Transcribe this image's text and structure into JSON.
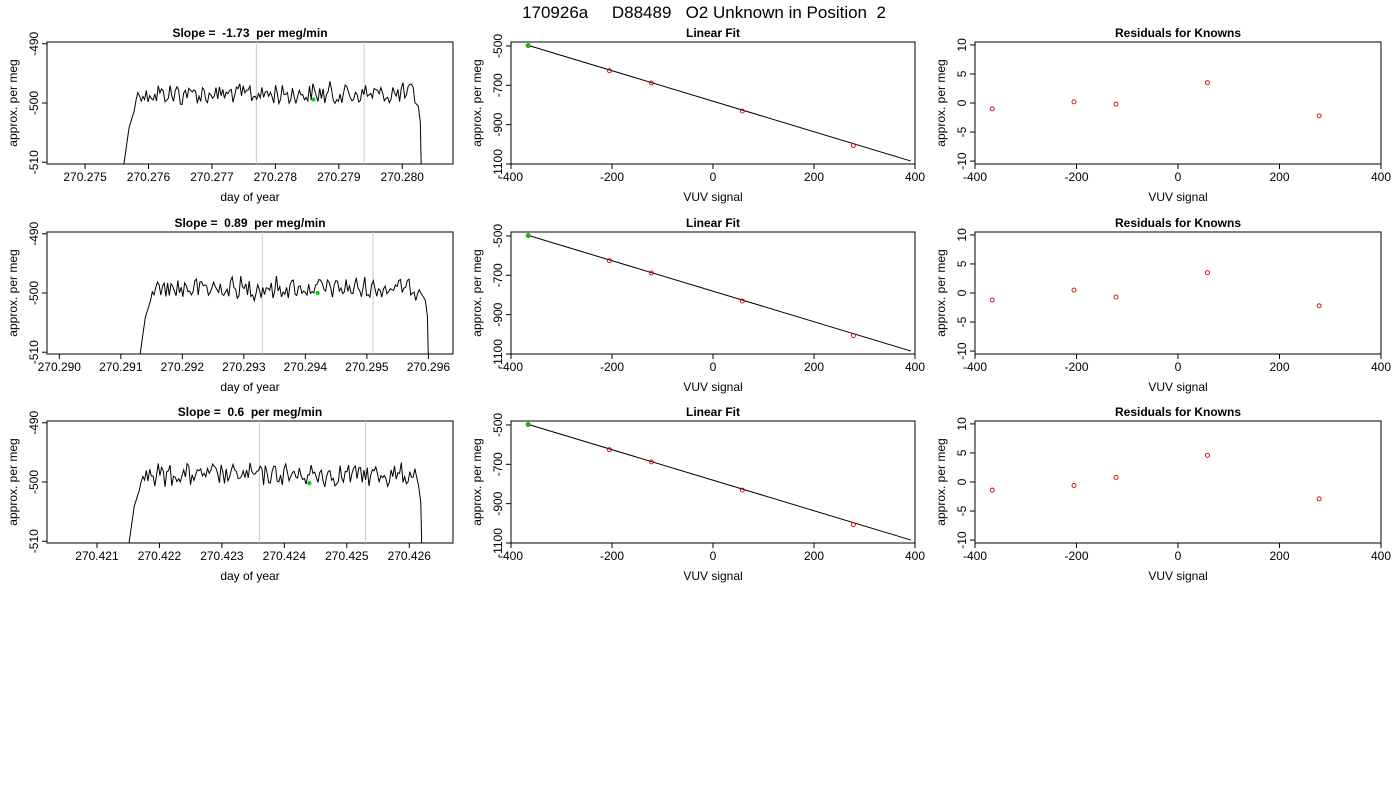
{
  "page_title": "170926a     D88489   O2 Unknown in Position  2",
  "colors": {
    "trace": "#000000",
    "marker_unknown": "#00cc00",
    "residual_points": "#cc0000",
    "fit_points": "#cc0000",
    "vlines": "#c8c8c8",
    "frame": "#000000"
  },
  "chart_data": [
    {
      "type": "line",
      "title": "Slope =  -1.73  per meg/min",
      "xlabel": "day of year",
      "ylabel": "approx. per meg",
      "xlim": [
        270.2744,
        270.2808
      ],
      "ylim": [
        -510.3,
        -489.7
      ],
      "xticks": [
        "270.275",
        "270.276",
        "270.277",
        "270.278",
        "270.279",
        "270.280"
      ],
      "yticks": [
        "-490",
        "-500",
        "-510"
      ],
      "grid": false,
      "trace_start": 270.2756,
      "trace_end": 270.2803,
      "trace_level": -498.5,
      "vlines": [
        270.2777,
        270.2794
      ],
      "marker": {
        "x": 270.2786,
        "y": -499.4
      }
    },
    {
      "type": "scatter",
      "title": "Linear Fit",
      "xlabel": "VUV signal",
      "ylabel": "approx. per meg",
      "xlim": [
        -400,
        400
      ],
      "ylim": [
        -1100,
        -480
      ],
      "xticks": [
        "-400",
        "-200",
        "0",
        "200",
        "400"
      ],
      "yticks": [
        "-500",
        "-700",
        "-900",
        "-1100"
      ],
      "points": [
        [
          -366,
          -498
        ],
        [
          -205,
          -626
        ],
        [
          -122,
          -688
        ],
        [
          58,
          -831
        ],
        [
          278,
          -1006
        ]
      ],
      "fit_line": [
        [
          -370,
          -494
        ],
        [
          392,
          -1085
        ]
      ],
      "marker": {
        "x": -366,
        "y": -498
      }
    },
    {
      "type": "scatter",
      "title": "Residuals for Knowns",
      "xlabel": "VUV signal",
      "ylabel": "approx. per meg",
      "xlim": [
        -400,
        400
      ],
      "ylim": [
        -10.5,
        10.5
      ],
      "xticks": [
        "-400",
        "-200",
        "0",
        "200",
        "400"
      ],
      "yticks": [
        "-10",
        "-5",
        "0",
        "5",
        "10"
      ],
      "points": [
        [
          -366,
          -1.0
        ],
        [
          -205,
          0.2
        ],
        [
          -122,
          -0.2
        ],
        [
          58,
          3.5
        ],
        [
          278,
          -2.2
        ]
      ]
    },
    {
      "type": "line",
      "title": "Slope =  0.89  per meg/min",
      "xlabel": "day of year",
      "ylabel": "approx. per meg",
      "xlim": [
        270.2898,
        270.2964
      ],
      "ylim": [
        -510.3,
        -489.7
      ],
      "xticks": [
        "270.290",
        "270.291",
        "270.292",
        "270.293",
        "270.294",
        "270.295",
        "270.296"
      ],
      "yticks": [
        "-490",
        "-500",
        "-510"
      ],
      "grid": false,
      "trace_start": 270.2913,
      "trace_end": 270.296,
      "trace_level": -499.2,
      "vlines": [
        270.2933,
        270.2951
      ],
      "marker": {
        "x": 270.2942,
        "y": -500.0
      }
    },
    {
      "type": "scatter",
      "title": "Linear Fit",
      "xlabel": "VUV signal",
      "ylabel": "approx. per meg",
      "xlim": [
        -400,
        400
      ],
      "ylim": [
        -1100,
        -480
      ],
      "xticks": [
        "-400",
        "-200",
        "0",
        "200",
        "400"
      ],
      "yticks": [
        "-500",
        "-700",
        "-900",
        "-1100"
      ],
      "points": [
        [
          -366,
          -498
        ],
        [
          -205,
          -626
        ],
        [
          -122,
          -688
        ],
        [
          58,
          -831
        ],
        [
          278,
          -1006
        ]
      ],
      "fit_line": [
        [
          -370,
          -494
        ],
        [
          392,
          -1085
        ]
      ],
      "marker": {
        "x": -366,
        "y": -498
      }
    },
    {
      "type": "scatter",
      "title": "Residuals for Knowns",
      "xlabel": "VUV signal",
      "ylabel": "approx. per meg",
      "xlim": [
        -400,
        400
      ],
      "ylim": [
        -10.5,
        10.5
      ],
      "xticks": [
        "-400",
        "-200",
        "0",
        "200",
        "400"
      ],
      "yticks": [
        "-10",
        "-5",
        "0",
        "5",
        "10"
      ],
      "points": [
        [
          -366,
          -1.2
        ],
        [
          -205,
          0.5
        ],
        [
          -122,
          -0.7
        ],
        [
          58,
          3.5
        ],
        [
          278,
          -2.2
        ]
      ]
    },
    {
      "type": "line",
      "title": "Slope =  0.6  per meg/min",
      "xlabel": "day of year",
      "ylabel": "approx. per meg",
      "xlim": [
        270.4202,
        270.4267
      ],
      "ylim": [
        -510.3,
        -489.7
      ],
      "xticks": [
        "270.421",
        "270.422",
        "270.423",
        "270.424",
        "270.425",
        "270.426"
      ],
      "yticks": [
        "-490",
        "-500",
        "-510"
      ],
      "grid": false,
      "trace_start": 270.4215,
      "trace_end": 270.4262,
      "trace_level": -498.8,
      "vlines": [
        270.4236,
        270.4253
      ],
      "marker": {
        "x": 270.4244,
        "y": -500.2
      }
    },
    {
      "type": "scatter",
      "title": "Linear Fit",
      "xlabel": "VUV signal",
      "ylabel": "approx. per meg",
      "xlim": [
        -400,
        400
      ],
      "ylim": [
        -1100,
        -480
      ],
      "xticks": [
        "-400",
        "-200",
        "0",
        "200",
        "400"
      ],
      "yticks": [
        "-500",
        "-700",
        "-900",
        "-1100"
      ],
      "points": [
        [
          -366,
          -498
        ],
        [
          -205,
          -626
        ],
        [
          -122,
          -688
        ],
        [
          58,
          -831
        ],
        [
          278,
          -1006
        ]
      ],
      "fit_line": [
        [
          -370,
          -494
        ],
        [
          392,
          -1085
        ]
      ],
      "marker": {
        "x": -366,
        "y": -498
      }
    },
    {
      "type": "scatter",
      "title": "Residuals for Knowns",
      "xlabel": "VUV signal",
      "ylabel": "approx. per meg",
      "xlim": [
        -400,
        400
      ],
      "ylim": [
        -10.5,
        10.5
      ],
      "xticks": [
        "-400",
        "-200",
        "0",
        "200",
        "400"
      ],
      "yticks": [
        "-10",
        "-5",
        "0",
        "5",
        "10"
      ],
      "points": [
        [
          -366,
          -1.4
        ],
        [
          -205,
          -0.6
        ],
        [
          -122,
          0.8
        ],
        [
          58,
          4.6
        ],
        [
          278,
          -2.9
        ]
      ]
    }
  ]
}
